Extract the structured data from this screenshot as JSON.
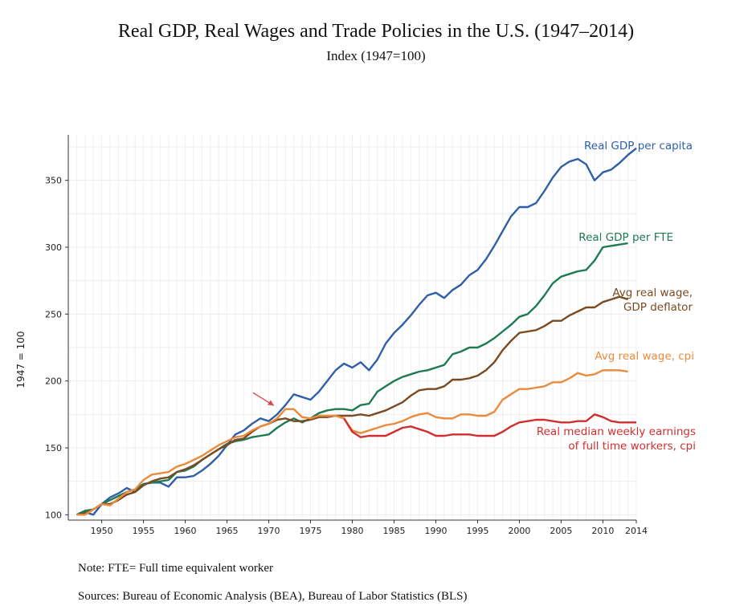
{
  "header": {
    "title": "Real GDP, Real Wages and Trade Policies in the U.S. (1947–2014)",
    "subtitle": "Index (1947=100)"
  },
  "footer": {
    "note": "Note: FTE= Full time equivalent worker",
    "sources": "Sources: Bureau of Economic Analysis (BEA), Bureau of Labor Statistics (BLS)"
  },
  "chart_data": {
    "type": "line",
    "ylabel": "1947 = 100",
    "xlabel": "",
    "xlim": [
      1946,
      2014
    ],
    "ylim": [
      96,
      384
    ],
    "x_ticks": [
      1950,
      1955,
      1960,
      1965,
      1970,
      1975,
      1980,
      1985,
      1990,
      1995,
      2000,
      2005,
      2010,
      2014
    ],
    "y_ticks": [
      100,
      150,
      200,
      250,
      300,
      350
    ],
    "grid": true,
    "legend": "direct labels at line ends",
    "annotation": {
      "type": "arrow",
      "at": [
        1971,
        178
      ],
      "color": "#d94a4a"
    },
    "series": [
      {
        "name": "Real GDP per capita",
        "label_lines": [
          "Real GDP per capita"
        ],
        "color": "#2f5fa8",
        "x": [
          1947,
          1948,
          1949,
          1950,
          1951,
          1952,
          1953,
          1954,
          1955,
          1956,
          1957,
          1958,
          1959,
          1960,
          1961,
          1962,
          1963,
          1964,
          1965,
          1966,
          1967,
          1968,
          1969,
          1970,
          1971,
          1972,
          1973,
          1974,
          1975,
          1976,
          1977,
          1978,
          1979,
          1980,
          1981,
          1982,
          1983,
          1984,
          1985,
          1986,
          1987,
          1988,
          1989,
          1990,
          1991,
          1992,
          1993,
          1994,
          1995,
          1996,
          1997,
          1998,
          1999,
          2000,
          2001,
          2002,
          2003,
          2004,
          2005,
          2006,
          2007,
          2008,
          2009,
          2010,
          2011,
          2012,
          2013,
          2014
        ],
        "values": [
          100,
          102,
          100,
          108,
          113,
          116,
          120,
          117,
          123,
          124,
          124,
          121,
          128,
          128,
          129,
          133,
          138,
          144,
          152,
          160,
          163,
          168,
          172,
          170,
          175,
          182,
          190,
          188,
          186,
          192,
          200,
          208,
          213,
          210,
          214,
          208,
          216,
          228,
          236,
          242,
          249,
          257,
          264,
          266,
          262,
          268,
          272,
          279,
          283,
          291,
          301,
          312,
          323,
          330,
          330,
          333,
          342,
          352,
          360,
          364,
          366,
          362,
          350,
          356,
          358,
          363,
          369,
          374
        ]
      },
      {
        "name": "Real GDP per FTE",
        "label_lines": [
          "Real GDP per FTE"
        ],
        "color": "#1e7a52",
        "x": [
          1947,
          1948,
          1949,
          1950,
          1951,
          1952,
          1953,
          1954,
          1955,
          1956,
          1957,
          1958,
          1959,
          1960,
          1961,
          1962,
          1963,
          1964,
          1965,
          1966,
          1967,
          1968,
          1969,
          1970,
          1971,
          1972,
          1973,
          1974,
          1975,
          1976,
          1977,
          1978,
          1979,
          1980,
          1981,
          1982,
          1983,
          1984,
          1985,
          1986,
          1987,
          1988,
          1989,
          1990,
          1991,
          1992,
          1993,
          1994,
          1995,
          1996,
          1997,
          1998,
          1999,
          2000,
          2001,
          2002,
          2003,
          2004,
          2005,
          2006,
          2007,
          2008,
          2009,
          2010,
          2011,
          2012,
          2013
        ],
        "values": [
          100,
          103,
          104,
          108,
          111,
          114,
          117,
          119,
          123,
          124,
          125,
          126,
          132,
          133,
          136,
          141,
          145,
          149,
          153,
          155,
          156,
          158,
          159,
          160,
          165,
          169,
          172,
          169,
          172,
          176,
          178,
          179,
          179,
          178,
          182,
          183,
          192,
          196,
          200,
          203,
          205,
          207,
          208,
          210,
          212,
          220,
          222,
          225,
          225,
          228,
          232,
          237,
          242,
          248,
          250,
          256,
          264,
          273,
          278,
          280,
          282,
          283,
          290,
          300,
          301,
          302,
          303
        ]
      },
      {
        "name": "Avg real wage, GDP deflator",
        "label_lines": [
          "Avg real wage,",
          "GDP deflator"
        ],
        "color": "#7a4a22",
        "x": [
          1947,
          1948,
          1949,
          1950,
          1951,
          1952,
          1953,
          1954,
          1955,
          1956,
          1957,
          1958,
          1959,
          1960,
          1961,
          1962,
          1963,
          1964,
          1965,
          1966,
          1967,
          1968,
          1969,
          1970,
          1971,
          1972,
          1973,
          1974,
          1975,
          1976,
          1977,
          1978,
          1979,
          1980,
          1981,
          1982,
          1983,
          1984,
          1985,
          1986,
          1987,
          1988,
          1989,
          1990,
          1991,
          1992,
          1993,
          1994,
          1995,
          1996,
          1997,
          1998,
          1999,
          2000,
          2001,
          2002,
          2003,
          2004,
          2005,
          2006,
          2007,
          2008,
          2009,
          2010,
          2011,
          2012,
          2013
        ],
        "values": [
          100,
          101,
          104,
          108,
          108,
          111,
          115,
          117,
          122,
          125,
          127,
          128,
          132,
          134,
          137,
          141,
          145,
          149,
          152,
          156,
          157,
          162,
          166,
          168,
          171,
          172,
          170,
          170,
          171,
          173,
          173,
          174,
          174,
          174,
          175,
          174,
          176,
          178,
          181,
          184,
          189,
          193,
          194,
          194,
          196,
          201,
          201,
          202,
          204,
          208,
          214,
          223,
          230,
          236,
          237,
          238,
          241,
          245,
          245,
          249,
          252,
          255,
          255,
          259,
          261,
          263,
          261
        ]
      },
      {
        "name": "Avg real wage, cpi",
        "label_lines": [
          "Avg real wage, cpi"
        ],
        "color": "#ea8a3c",
        "x": [
          1947,
          1948,
          1949,
          1950,
          1951,
          1952,
          1953,
          1954,
          1955,
          1956,
          1957,
          1958,
          1959,
          1960,
          1961,
          1962,
          1963,
          1964,
          1965,
          1966,
          1967,
          1968,
          1969,
          1970,
          1971,
          1972,
          1973,
          1974,
          1975,
          1976,
          1977,
          1978,
          1979,
          1980,
          1981,
          1982,
          1983,
          1984,
          1985,
          1986,
          1987,
          1988,
          1989,
          1990,
          1991,
          1992,
          1993,
          1994,
          1995,
          1996,
          1997,
          1998,
          1999,
          2000,
          2001,
          2002,
          2003,
          2004,
          2005,
          2006,
          2007,
          2008,
          2009,
          2010,
          2011,
          2012,
          2013
        ],
        "values": [
          100,
          100,
          104,
          108,
          107,
          112,
          117,
          119,
          126,
          130,
          131,
          132,
          136,
          138,
          141,
          144,
          148,
          152,
          155,
          158,
          159,
          163,
          166,
          168,
          172,
          179,
          179,
          173,
          172,
          174,
          174,
          174,
          172,
          163,
          161,
          163,
          165,
          167,
          168,
          170,
          173,
          175,
          176,
          173,
          172,
          172,
          175,
          175,
          174,
          174,
          177,
          186,
          190,
          194,
          194,
          195,
          196,
          199,
          199,
          202,
          206,
          204,
          205,
          208,
          208,
          208,
          207
        ]
      },
      {
        "name": "Real median weekly earnings of full time workers, cpi",
        "label_lines": [
          "Real median weekly earnings",
          "of full time workers, cpi"
        ],
        "color": "#d12f2f",
        "x": [
          1979,
          1980,
          1981,
          1982,
          1983,
          1984,
          1985,
          1986,
          1987,
          1988,
          1989,
          1990,
          1991,
          1992,
          1993,
          1994,
          1995,
          1996,
          1997,
          1998,
          1999,
          2000,
          2001,
          2002,
          2003,
          2004,
          2005,
          2006,
          2007,
          2008,
          2009,
          2010,
          2011,
          2012,
          2013,
          2014
        ],
        "values": [
          172,
          162,
          158,
          159,
          159,
          159,
          162,
          165,
          166,
          164,
          162,
          159,
          159,
          160,
          160,
          160,
          159,
          159,
          159,
          162,
          166,
          169,
          170,
          171,
          171,
          170,
          169,
          169,
          170,
          170,
          175,
          173,
          170,
          169,
          169,
          169
        ]
      }
    ]
  }
}
